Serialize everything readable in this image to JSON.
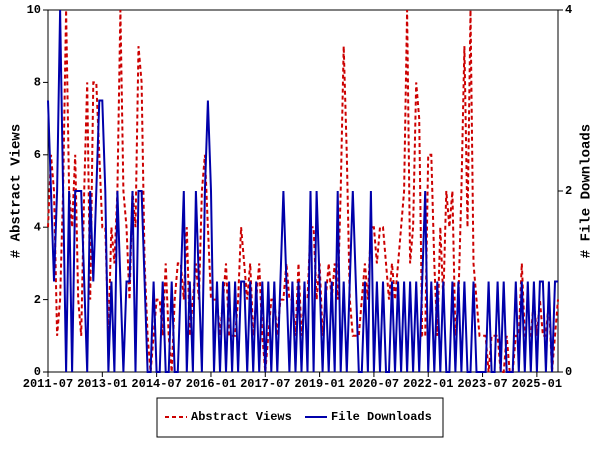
{
  "chart_data": {
    "type": "line",
    "ylabel": "# Abstract Views",
    "y2label": "# File Downloads",
    "categories": [
      "2011-07",
      null,
      null,
      null,
      null,
      null,
      null,
      null,
      null,
      null,
      null,
      null,
      null,
      null,
      null,
      null,
      null,
      null,
      "2013-01",
      null,
      null,
      null,
      null,
      null,
      null,
      null,
      null,
      null,
      null,
      null,
      null,
      null,
      null,
      null,
      null,
      null,
      "2014-07",
      null,
      null,
      null,
      null,
      null,
      null,
      null,
      null,
      null,
      null,
      null,
      null,
      null,
      null,
      null,
      null,
      null,
      "2016-01",
      null,
      null,
      null,
      null,
      null,
      null,
      null,
      null,
      null,
      null,
      null,
      null,
      null,
      null,
      null,
      null,
      null,
      "2017-07",
      null,
      null,
      null,
      null,
      null,
      null,
      null,
      null,
      null,
      null,
      null,
      null,
      null,
      null,
      null,
      null,
      null,
      "2019-01",
      null,
      null,
      null,
      null,
      null,
      null,
      null,
      null,
      null,
      null,
      null,
      null,
      null,
      null,
      null,
      null,
      null,
      "2020-07",
      null,
      null,
      null,
      null,
      null,
      null,
      null,
      null,
      null,
      null,
      null,
      null,
      null,
      null,
      null,
      null,
      null,
      "2022-01",
      null,
      null,
      null,
      null,
      null,
      null,
      null,
      null,
      null,
      null,
      null,
      null,
      null,
      null,
      null,
      null,
      null,
      "2023-07",
      null,
      null,
      null,
      null,
      null,
      null,
      null,
      null,
      null,
      null,
      null,
      null,
      null,
      null,
      null,
      null,
      null,
      "2025-01",
      null,
      null,
      null,
      null,
      null,
      null,
      null
    ],
    "series": [
      {
        "name": "Abstract Views",
        "color": "#cc0000",
        "dash": true,
        "values": [
          4,
          6,
          5,
          1,
          2,
          5,
          10,
          5,
          4,
          6,
          2,
          1,
          5,
          8,
          2,
          8,
          8,
          6,
          4,
          4,
          1,
          4,
          3,
          5,
          10,
          5,
          4,
          2,
          5,
          4,
          9,
          8,
          3,
          1,
          0,
          1,
          2,
          2,
          1,
          3,
          1,
          0,
          2,
          3,
          3,
          2,
          4,
          1,
          2,
          3,
          2,
          5,
          6,
          4,
          2,
          2,
          2,
          1,
          2,
          3,
          1,
          1,
          1,
          2,
          4,
          3,
          2,
          3,
          1,
          2,
          3,
          1,
          0,
          1,
          2,
          2,
          1,
          2,
          2,
          3,
          2,
          2,
          1,
          3,
          1,
          2,
          2,
          4,
          4,
          2,
          3,
          1,
          2,
          3,
          2,
          3,
          2,
          5,
          9,
          6,
          2,
          1,
          1,
          1,
          2,
          3,
          2,
          4,
          4,
          3,
          4,
          4,
          3,
          2,
          3,
          2,
          3,
          4,
          5,
          10,
          3,
          4,
          8,
          7,
          1,
          1,
          6,
          6,
          3,
          1,
          4,
          2,
          5,
          4,
          5,
          1,
          2,
          5,
          9,
          4,
          10,
          3,
          2,
          1,
          1,
          1,
          0,
          1,
          1,
          1,
          0,
          0,
          1,
          0,
          0,
          1,
          1,
          3,
          1,
          1,
          1,
          2,
          1,
          2,
          1,
          1,
          2,
          0,
          1,
          2
        ]
      },
      {
        "name": "File Downloads",
        "color": "#0000aa",
        "dash": false,
        "axis": "y2",
        "values": [
          3,
          2,
          1,
          2,
          4,
          2,
          0,
          2,
          0,
          2,
          2,
          2,
          1,
          0,
          2,
          1,
          2,
          3,
          3,
          2,
          0,
          1,
          0,
          2,
          1,
          0,
          1,
          1,
          2,
          0,
          2,
          2,
          1,
          0,
          0,
          1,
          0,
          0,
          1,
          0,
          0,
          1,
          0,
          0,
          1,
          2,
          0,
          1,
          0,
          2,
          1,
          0,
          2,
          3,
          2,
          0,
          1,
          0,
          1,
          0,
          1,
          0,
          1,
          0,
          1,
          1,
          0,
          1,
          0,
          1,
          0,
          1,
          0,
          1,
          0,
          1,
          0,
          1,
          2,
          1,
          0,
          1,
          0,
          1,
          0,
          1,
          0,
          2,
          0,
          2,
          1,
          0,
          1,
          0,
          1,
          0,
          2,
          0,
          1,
          0,
          1,
          2,
          1,
          0,
          0,
          1,
          0,
          2,
          0,
          1,
          0,
          1,
          0,
          0,
          1,
          0,
          1,
          0,
          1,
          0,
          1,
          0,
          1,
          0,
          1,
          2,
          0,
          1,
          0,
          1,
          0,
          1,
          0,
          0,
          1,
          0,
          1,
          0,
          1,
          0,
          0,
          1,
          0,
          0,
          0,
          0,
          1,
          0,
          0,
          1,
          0,
          1,
          0,
          0,
          0,
          1,
          0,
          1,
          0,
          1,
          0,
          1,
          0,
          1,
          1,
          0,
          1,
          0,
          1,
          1
        ]
      }
    ],
    "ylim": [
      0,
      10
    ],
    "yticks": [
      0,
      2,
      4,
      6,
      8,
      10
    ],
    "y2lim": [
      0,
      4
    ],
    "y2ticks": [
      0,
      2,
      4
    ],
    "legend": "bottom"
  }
}
